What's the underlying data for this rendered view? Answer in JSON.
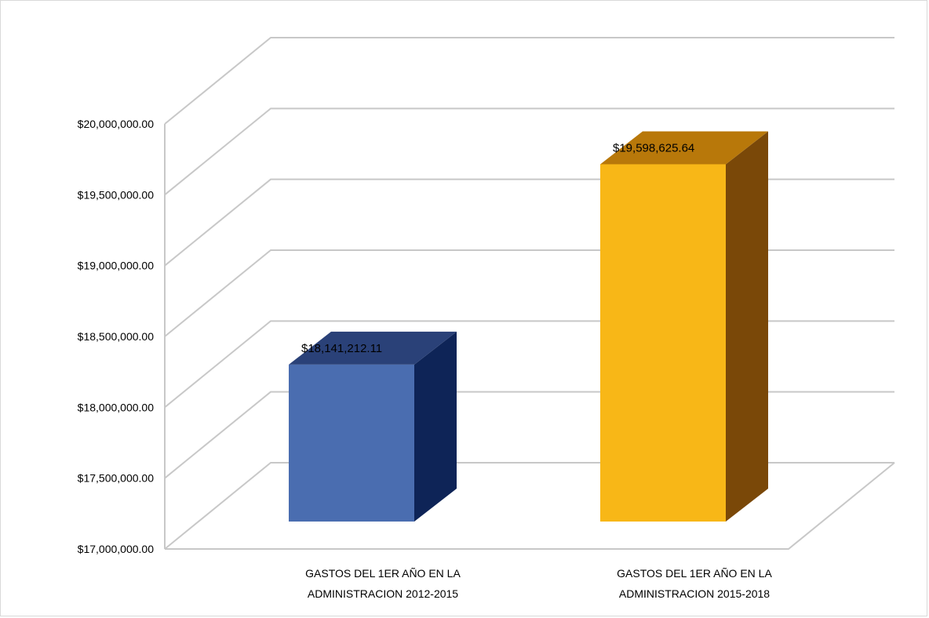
{
  "chart_data": {
    "type": "bar",
    "title": "",
    "xlabel": "",
    "ylabel": "",
    "ylim": [
      17000000,
      20000000
    ],
    "y_ticks": [
      17000000,
      17500000,
      18000000,
      18500000,
      19000000,
      19500000,
      20000000
    ],
    "y_tick_labels": [
      "$17,000,000.00",
      "$17,500,000.00",
      "$18,000,000.00",
      "$18,500,000.00",
      "$19,000,000.00",
      "$19,500,000.00",
      "$20,000,000.00"
    ],
    "categories": [
      [
        "GASTOS DEL 1ER AÑO EN LA",
        "ADMINISTRACION 2012-2015"
      ],
      [
        "GASTOS DEL 1ER AÑO EN LA",
        "ADMINISTRACION 2015-2018"
      ]
    ],
    "values": [
      18141212.11,
      19598625.64
    ],
    "data_labels": [
      "$18,141,212.11",
      "$19,598,625.64"
    ],
    "grid": true,
    "legend": "none",
    "style": "3d-column",
    "colors": {
      "bar1_front": "#4a6db0",
      "bar1_top": "#2a4178",
      "bar1_side": "#0e2457",
      "bar2_front": "#f8b717",
      "bar2_top": "#b8780a",
      "bar2_side": "#7a4808",
      "gridline": "#c8c8c8"
    }
  }
}
